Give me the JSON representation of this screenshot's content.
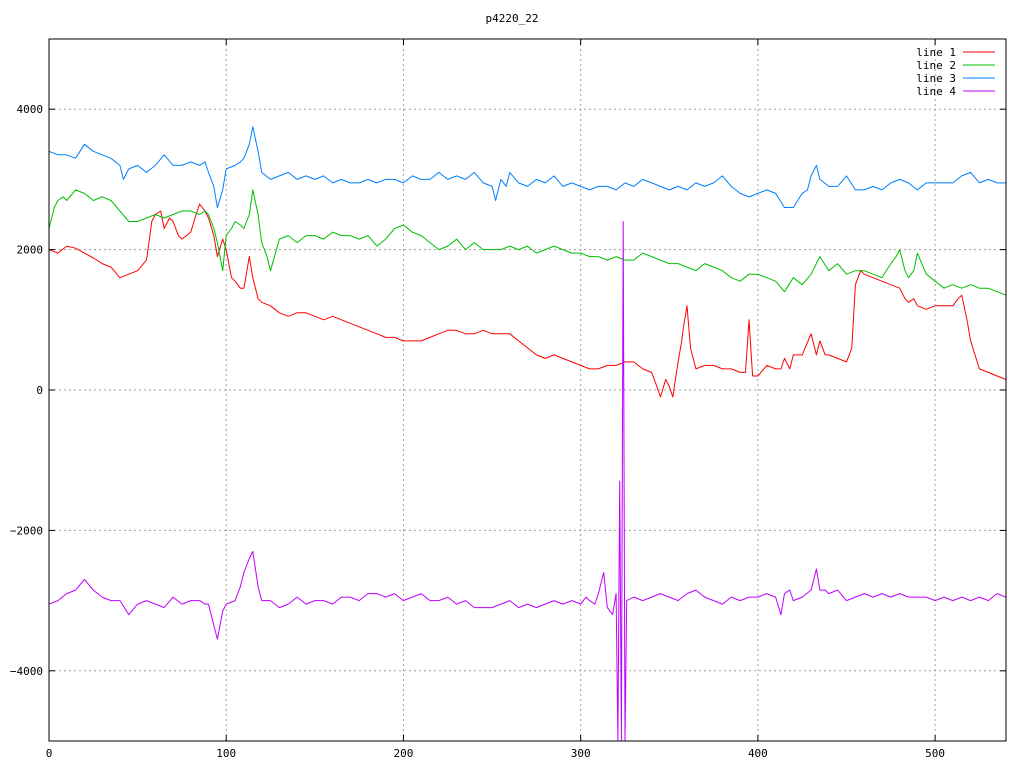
{
  "chart_data": {
    "type": "line",
    "title": "p4220_22",
    "xlabel": "",
    "ylabel": "",
    "xlim": [
      0,
      540
    ],
    "ylim": [
      -5000,
      5000
    ],
    "xticks": [
      0,
      100,
      200,
      300,
      400,
      500
    ],
    "yticks": [
      -4000,
      -2000,
      0,
      2000,
      4000
    ],
    "grid": true,
    "legend_position": "top-right",
    "series": [
      {
        "name": "line 1",
        "color": "#ff0000",
        "x": [
          0,
          5,
          10,
          15,
          20,
          25,
          30,
          35,
          40,
          45,
          50,
          55,
          58,
          60,
          63,
          65,
          68,
          70,
          73,
          75,
          80,
          83,
          85,
          88,
          90,
          93,
          95,
          98,
          100,
          103,
          105,
          108,
          110,
          113,
          115,
          118,
          120,
          125,
          130,
          135,
          140,
          145,
          150,
          155,
          160,
          165,
          170,
          175,
          180,
          185,
          190,
          195,
          200,
          205,
          210,
          215,
          220,
          225,
          230,
          235,
          240,
          245,
          250,
          255,
          260,
          265,
          270,
          275,
          280,
          285,
          290,
          295,
          300,
          305,
          310,
          315,
          320,
          325,
          330,
          335,
          340,
          343,
          345,
          348,
          350,
          352,
          355,
          357,
          358,
          360,
          362,
          365,
          370,
          375,
          380,
          385,
          390,
          393,
          395,
          397,
          400,
          405,
          410,
          413,
          415,
          418,
          420,
          425,
          430,
          433,
          435,
          438,
          440,
          445,
          450,
          453,
          455,
          458,
          460,
          465,
          470,
          475,
          480,
          483,
          485,
          488,
          490,
          495,
          500,
          505,
          510,
          513,
          515,
          518,
          520,
          525,
          530,
          535,
          540
        ],
        "y": [
          2000,
          1950,
          2050,
          2020,
          1950,
          1880,
          1800,
          1750,
          1600,
          1650,
          1700,
          1850,
          2400,
          2500,
          2550,
          2300,
          2450,
          2400,
          2200,
          2150,
          2250,
          2500,
          2650,
          2550,
          2450,
          2200,
          1900,
          2150,
          2000,
          1600,
          1550,
          1450,
          1450,
          1900,
          1600,
          1300,
          1250,
          1200,
          1100,
          1050,
          1100,
          1100,
          1050,
          1000,
          1050,
          1000,
          950,
          900,
          850,
          800,
          750,
          750,
          700,
          700,
          700,
          750,
          800,
          850,
          850,
          800,
          800,
          850,
          800,
          800,
          800,
          700,
          600,
          500,
          450,
          500,
          450,
          400,
          350,
          300,
          300,
          350,
          350,
          400,
          400,
          300,
          250,
          50,
          -100,
          150,
          50,
          -100,
          400,
          700,
          900,
          1200,
          600,
          300,
          350,
          350,
          300,
          300,
          250,
          250,
          1000,
          200,
          200,
          350,
          300,
          300,
          450,
          300,
          500,
          500,
          800,
          500,
          700,
          500,
          500,
          450,
          400,
          600,
          1500,
          1700,
          1650,
          1600,
          1550,
          1500,
          1450,
          1300,
          1250,
          1300,
          1200,
          1150,
          1200,
          1200,
          1200,
          1300,
          1350,
          1000,
          700,
          300,
          250,
          200,
          150
        ]
      },
      {
        "name": "line 2",
        "color": "#00c000",
        "x": [
          0,
          3,
          5,
          8,
          10,
          15,
          20,
          25,
          30,
          35,
          40,
          45,
          50,
          55,
          60,
          65,
          70,
          75,
          80,
          85,
          88,
          90,
          93,
          95,
          98,
          100,
          103,
          105,
          108,
          110,
          113,
          115,
          118,
          120,
          123,
          125,
          130,
          135,
          140,
          145,
          150,
          155,
          160,
          165,
          170,
          175,
          180,
          185,
          190,
          195,
          200,
          205,
          210,
          215,
          220,
          225,
          230,
          235,
          240,
          245,
          250,
          255,
          260,
          265,
          270,
          275,
          280,
          285,
          290,
          295,
          300,
          305,
          310,
          315,
          320,
          325,
          330,
          335,
          340,
          345,
          350,
          355,
          360,
          365,
          370,
          375,
          380,
          385,
          390,
          395,
          400,
          405,
          410,
          415,
          420,
          425,
          430,
          435,
          440,
          445,
          450,
          455,
          460,
          465,
          470,
          475,
          478,
          480,
          483,
          485,
          488,
          490,
          495,
          500,
          505,
          510,
          515,
          520,
          525,
          530,
          535,
          540
        ],
        "y": [
          2300,
          2600,
          2700,
          2750,
          2700,
          2850,
          2800,
          2700,
          2750,
          2700,
          2550,
          2400,
          2400,
          2450,
          2500,
          2450,
          2500,
          2550,
          2550,
          2500,
          2550,
          2500,
          2300,
          2100,
          1700,
          2200,
          2300,
          2400,
          2350,
          2300,
          2500,
          2850,
          2500,
          2100,
          1900,
          1700,
          2150,
          2200,
          2100,
          2200,
          2200,
          2150,
          2250,
          2200,
          2200,
          2150,
          2200,
          2050,
          2150,
          2300,
          2350,
          2250,
          2200,
          2100,
          2000,
          2050,
          2150,
          2000,
          2100,
          2000,
          2000,
          2000,
          2050,
          2000,
          2050,
          1950,
          2000,
          2050,
          2000,
          1950,
          1950,
          1900,
          1900,
          1850,
          1900,
          1850,
          1850,
          1950,
          1900,
          1850,
          1800,
          1800,
          1750,
          1700,
          1800,
          1750,
          1700,
          1600,
          1550,
          1650,
          1650,
          1600,
          1550,
          1400,
          1600,
          1500,
          1650,
          1900,
          1700,
          1800,
          1650,
          1700,
          1700,
          1650,
          1600,
          1800,
          1900,
          2000,
          1700,
          1600,
          1700,
          1950,
          1650,
          1550,
          1450,
          1500,
          1450,
          1500,
          1450,
          1450,
          1400,
          1350
        ]
      },
      {
        "name": "line 3",
        "color": "#0080ff",
        "x": [
          0,
          5,
          10,
          15,
          20,
          25,
          30,
          35,
          40,
          42,
          45,
          50,
          55,
          60,
          65,
          70,
          75,
          80,
          85,
          88,
          90,
          93,
          95,
          98,
          100,
          105,
          108,
          110,
          113,
          115,
          118,
          120,
          125,
          130,
          135,
          140,
          145,
          150,
          155,
          160,
          165,
          170,
          175,
          180,
          185,
          190,
          195,
          200,
          205,
          210,
          215,
          220,
          225,
          230,
          235,
          240,
          245,
          250,
          252,
          255,
          258,
          260,
          265,
          270,
          275,
          280,
          285,
          290,
          295,
          300,
          305,
          310,
          315,
          320,
          325,
          330,
          335,
          340,
          345,
          350,
          355,
          360,
          365,
          370,
          375,
          380,
          385,
          390,
          395,
          400,
          405,
          410,
          415,
          420,
          425,
          428,
          430,
          433,
          435,
          440,
          445,
          450,
          455,
          460,
          465,
          470,
          475,
          480,
          485,
          490,
          495,
          500,
          505,
          510,
          515,
          520,
          525,
          530,
          535,
          540
        ],
        "y": [
          3400,
          3350,
          3350,
          3300,
          3500,
          3400,
          3350,
          3300,
          3200,
          3000,
          3150,
          3200,
          3100,
          3200,
          3350,
          3200,
          3200,
          3250,
          3200,
          3250,
          3100,
          2900,
          2600,
          2850,
          3150,
          3200,
          3250,
          3300,
          3500,
          3750,
          3400,
          3100,
          3000,
          3050,
          3100,
          3000,
          3050,
          3000,
          3050,
          2950,
          3000,
          2950,
          2950,
          3000,
          2950,
          3000,
          3000,
          2950,
          3050,
          3000,
          3000,
          3100,
          3000,
          3050,
          3000,
          3100,
          2950,
          2900,
          2700,
          3000,
          2900,
          3100,
          2950,
          2900,
          3000,
          2950,
          3050,
          2900,
          2950,
          2900,
          2850,
          2900,
          2900,
          2850,
          2950,
          2900,
          3000,
          2950,
          2900,
          2850,
          2900,
          2850,
          2950,
          2900,
          2950,
          3050,
          2900,
          2800,
          2750,
          2800,
          2850,
          2800,
          2600,
          2600,
          2800,
          2850,
          3050,
          3200,
          3000,
          2900,
          2900,
          3050,
          2850,
          2850,
          2900,
          2850,
          2950,
          3000,
          2950,
          2850,
          2950,
          2950,
          2950,
          2950,
          3050,
          3100,
          2950,
          3000,
          2950,
          2950
        ]
      },
      {
        "name": "line 4",
        "color": "#c000ff",
        "x": [
          0,
          5,
          10,
          15,
          20,
          25,
          30,
          35,
          40,
          45,
          50,
          55,
          60,
          65,
          70,
          75,
          80,
          85,
          88,
          90,
          93,
          95,
          98,
          100,
          105,
          108,
          110,
          113,
          115,
          118,
          120,
          125,
          130,
          135,
          140,
          145,
          150,
          155,
          160,
          165,
          170,
          175,
          180,
          185,
          190,
          195,
          200,
          205,
          210,
          215,
          220,
          225,
          230,
          235,
          240,
          245,
          250,
          255,
          260,
          265,
          270,
          275,
          280,
          285,
          290,
          295,
          300,
          303,
          305,
          308,
          310,
          313,
          315,
          318,
          320,
          321,
          322,
          323,
          324,
          325,
          326,
          330,
          335,
          340,
          345,
          350,
          355,
          360,
          365,
          370,
          375,
          380,
          385,
          390,
          395,
          400,
          405,
          410,
          413,
          415,
          418,
          420,
          425,
          430,
          433,
          435,
          438,
          440,
          445,
          450,
          455,
          460,
          465,
          470,
          475,
          480,
          485,
          490,
          495,
          500,
          505,
          510,
          515,
          520,
          525,
          530,
          535,
          540
        ],
        "y": [
          -3050,
          -3000,
          -2900,
          -2850,
          -2700,
          -2850,
          -2950,
          -3000,
          -3000,
          -3200,
          -3050,
          -3000,
          -3050,
          -3100,
          -2950,
          -3050,
          -3000,
          -3000,
          -3050,
          -3050,
          -3350,
          -3550,
          -3150,
          -3050,
          -3000,
          -2800,
          -2600,
          -2400,
          -2300,
          -2800,
          -3000,
          -3000,
          -3100,
          -3050,
          -2950,
          -3050,
          -3000,
          -3000,
          -3050,
          -2950,
          -2950,
          -3000,
          -2900,
          -2900,
          -2950,
          -2900,
          -3000,
          -2950,
          -2900,
          -3000,
          -3000,
          -2950,
          -3050,
          -3000,
          -3100,
          -3100,
          -3100,
          -3050,
          -3000,
          -3100,
          -3050,
          -3100,
          -3050,
          -3000,
          -3050,
          -3000,
          -3050,
          -2950,
          -3000,
          -3050,
          -2900,
          -2600,
          -3100,
          -3200,
          -2900,
          -5000,
          -1300,
          -5000,
          2400,
          -5000,
          -3000,
          -2950,
          -3000,
          -2950,
          -2900,
          -2950,
          -3000,
          -2900,
          -2850,
          -2950,
          -3000,
          -3050,
          -2950,
          -3000,
          -2950,
          -2950,
          -2900,
          -2950,
          -3200,
          -2900,
          -2850,
          -3000,
          -2950,
          -2850,
          -2550,
          -2850,
          -2850,
          -2900,
          -2850,
          -3000,
          -2950,
          -2900,
          -2950,
          -2900,
          -2950,
          -2900,
          -2950,
          -2950,
          -2950,
          -3000,
          -2950,
          -3000,
          -2950,
          -3000,
          -2950,
          -3000,
          -2900,
          -2950
        ]
      }
    ]
  }
}
